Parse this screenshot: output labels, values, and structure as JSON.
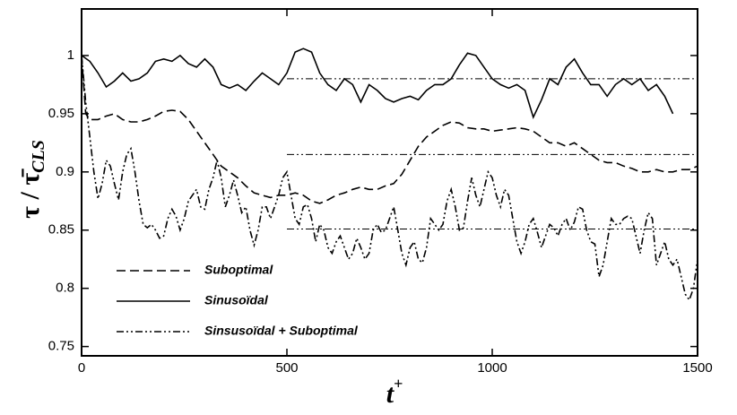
{
  "chart_data": {
    "type": "line",
    "xlabel": "t",
    "xlabel_sup": "+",
    "ylabel": "τ / τ̄",
    "ylabel_sub": "CLS",
    "xlim": [
      0,
      1500
    ],
    "xticks": [
      0,
      500,
      1000,
      1500
    ],
    "ylim": [
      0.742,
      1.04
    ],
    "yticks": [
      0.75,
      0.8,
      0.85,
      0.9,
      0.95,
      1
    ],
    "legend": "lower left",
    "series": [
      {
        "name": "Suboptimal",
        "color": "#000000",
        "dash": "10,5",
        "x": [
          0,
          10,
          20,
          40,
          60,
          80,
          100,
          120,
          140,
          160,
          180,
          200,
          220,
          240,
          260,
          280,
          300,
          320,
          340,
          360,
          380,
          400,
          420,
          440,
          460,
          480,
          500,
          520,
          540,
          560,
          580,
          600,
          620,
          640,
          660,
          680,
          700,
          720,
          740,
          760,
          780,
          800,
          820,
          840,
          860,
          880,
          900,
          920,
          940,
          960,
          980,
          1000,
          1020,
          1040,
          1060,
          1080,
          1100,
          1120,
          1140,
          1160,
          1180,
          1200,
          1220,
          1240,
          1260,
          1280,
          1300,
          1320,
          1340,
          1360,
          1380,
          1400,
          1420,
          1440,
          1460,
          1480,
          1500
        ],
        "values": [
          1.0,
          0.95,
          0.945,
          0.945,
          0.948,
          0.95,
          0.945,
          0.943,
          0.943,
          0.945,
          0.948,
          0.952,
          0.953,
          0.952,
          0.945,
          0.935,
          0.925,
          0.915,
          0.905,
          0.9,
          0.895,
          0.888,
          0.882,
          0.88,
          0.878,
          0.88,
          0.88,
          0.882,
          0.88,
          0.875,
          0.873,
          0.876,
          0.88,
          0.882,
          0.885,
          0.887,
          0.885,
          0.885,
          0.888,
          0.89,
          0.898,
          0.91,
          0.922,
          0.93,
          0.935,
          0.94,
          0.943,
          0.942,
          0.938,
          0.937,
          0.937,
          0.935,
          0.936,
          0.937,
          0.938,
          0.937,
          0.935,
          0.93,
          0.925,
          0.925,
          0.922,
          0.925,
          0.92,
          0.915,
          0.91,
          0.908,
          0.908,
          0.905,
          0.903,
          0.9,
          0.9,
          0.902,
          0.9,
          0.9,
          0.902,
          0.902,
          0.905
        ]
      },
      {
        "name": "Sinusoïdal",
        "color": "#000000",
        "dash": "none",
        "x": [
          0,
          20,
          40,
          60,
          80,
          100,
          120,
          140,
          160,
          180,
          200,
          220,
          240,
          260,
          280,
          300,
          320,
          340,
          360,
          380,
          400,
          420,
          440,
          460,
          480,
          500,
          520,
          540,
          560,
          580,
          600,
          620,
          640,
          660,
          680,
          700,
          720,
          740,
          760,
          780,
          800,
          820,
          840,
          860,
          880,
          900,
          920,
          940,
          960,
          980,
          1000,
          1020,
          1040,
          1060,
          1080,
          1100,
          1120,
          1140,
          1160,
          1180,
          1200,
          1220,
          1240,
          1260,
          1280,
          1300,
          1320,
          1340,
          1360,
          1380,
          1400,
          1420,
          1440
        ],
        "values": [
          1.0,
          0.995,
          0.985,
          0.973,
          0.978,
          0.985,
          0.978,
          0.98,
          0.985,
          0.995,
          0.997,
          0.995,
          1.0,
          0.993,
          0.99,
          0.997,
          0.99,
          0.975,
          0.972,
          0.975,
          0.97,
          0.978,
          0.985,
          0.98,
          0.975,
          0.985,
          1.003,
          1.006,
          1.003,
          0.985,
          0.975,
          0.97,
          0.98,
          0.975,
          0.96,
          0.975,
          0.97,
          0.963,
          0.96,
          0.963,
          0.965,
          0.962,
          0.97,
          0.975,
          0.975,
          0.98,
          0.992,
          1.002,
          1.0,
          0.99,
          0.98,
          0.975,
          0.972,
          0.975,
          0.97,
          0.947,
          0.962,
          0.98,
          0.975,
          0.99,
          0.997,
          0.985,
          0.975,
          0.975,
          0.965,
          0.975,
          0.98,
          0.975,
          0.98,
          0.97,
          0.975,
          0.965,
          0.95
        ]
      },
      {
        "name": "Sinsusoïdal + Suboptimal",
        "color": "#000000",
        "dash": "8,3,2,3,2,3",
        "x": [
          0,
          10,
          20,
          30,
          40,
          50,
          60,
          70,
          80,
          90,
          100,
          110,
          120,
          130,
          140,
          150,
          160,
          170,
          180,
          190,
          200,
          210,
          220,
          230,
          240,
          250,
          260,
          280,
          290,
          300,
          310,
          320,
          330,
          340,
          350,
          360,
          370,
          380,
          390,
          400,
          410,
          420,
          430,
          440,
          450,
          460,
          470,
          480,
          490,
          500,
          510,
          520,
          530,
          540,
          550,
          560,
          570,
          580,
          590,
          600,
          610,
          620,
          630,
          640,
          650,
          660,
          670,
          680,
          690,
          700,
          710,
          720,
          730,
          740,
          750,
          760,
          770,
          780,
          790,
          800,
          810,
          820,
          830,
          840,
          850,
          860,
          870,
          880,
          890,
          900,
          910,
          920,
          930,
          940,
          950,
          960,
          970,
          980,
          990,
          1000,
          1010,
          1020,
          1030,
          1040,
          1050,
          1060,
          1070,
          1080,
          1090,
          1100,
          1110,
          1120,
          1130,
          1140,
          1150,
          1160,
          1170,
          1180,
          1190,
          1200,
          1210,
          1220,
          1230,
          1240,
          1250,
          1260,
          1270,
          1280,
          1290,
          1300,
          1310,
          1320,
          1330,
          1340,
          1350,
          1360,
          1370,
          1380,
          1390,
          1400,
          1410,
          1420,
          1430,
          1440,
          1450,
          1460,
          1470,
          1480,
          1490,
          1500
        ],
        "values": [
          1.0,
          0.96,
          0.93,
          0.9,
          0.877,
          0.89,
          0.91,
          0.905,
          0.89,
          0.876,
          0.9,
          0.915,
          0.92,
          0.9,
          0.875,
          0.855,
          0.852,
          0.855,
          0.85,
          0.843,
          0.845,
          0.86,
          0.868,
          0.862,
          0.85,
          0.86,
          0.875,
          0.885,
          0.87,
          0.868,
          0.885,
          0.895,
          0.91,
          0.895,
          0.87,
          0.88,
          0.893,
          0.88,
          0.865,
          0.87,
          0.85,
          0.837,
          0.85,
          0.87,
          0.87,
          0.86,
          0.87,
          0.88,
          0.895,
          0.9,
          0.88,
          0.86,
          0.855,
          0.87,
          0.872,
          0.86,
          0.84,
          0.855,
          0.85,
          0.835,
          0.83,
          0.84,
          0.845,
          0.835,
          0.825,
          0.83,
          0.843,
          0.835,
          0.825,
          0.83,
          0.85,
          0.855,
          0.848,
          0.85,
          0.86,
          0.87,
          0.85,
          0.83,
          0.82,
          0.835,
          0.84,
          0.825,
          0.822,
          0.835,
          0.86,
          0.855,
          0.85,
          0.855,
          0.875,
          0.885,
          0.87,
          0.85,
          0.852,
          0.875,
          0.895,
          0.88,
          0.87,
          0.885,
          0.9,
          0.895,
          0.88,
          0.87,
          0.885,
          0.88,
          0.86,
          0.84,
          0.83,
          0.84,
          0.855,
          0.86,
          0.848,
          0.835,
          0.845,
          0.855,
          0.852,
          0.845,
          0.855,
          0.86,
          0.85,
          0.857,
          0.87,
          0.868,
          0.85,
          0.84,
          0.838,
          0.81,
          0.82,
          0.84,
          0.86,
          0.855,
          0.855,
          0.86,
          0.862,
          0.86,
          0.845,
          0.83,
          0.85,
          0.865,
          0.86,
          0.82,
          0.83,
          0.84,
          0.825,
          0.82,
          0.825,
          0.81,
          0.795,
          0.79,
          0.8,
          0.825
        ]
      }
    ],
    "reference_lines": [
      {
        "x": [
          500,
          1500
        ],
        "y": 0.98
      },
      {
        "x": [
          500,
          1500
        ],
        "y": 0.915
      },
      {
        "x": [
          500,
          1500
        ],
        "y": 0.851
      }
    ]
  }
}
